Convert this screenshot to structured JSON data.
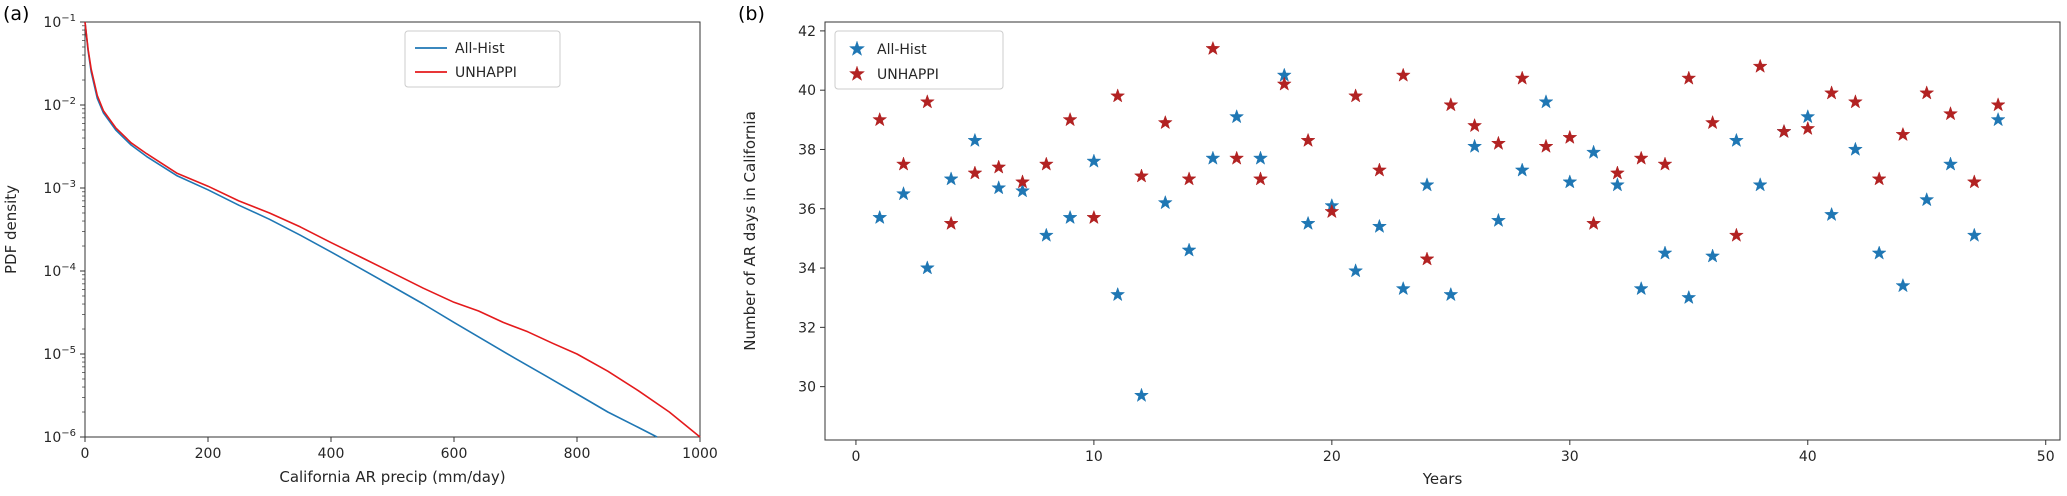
{
  "chart_data": [
    {
      "type": "line",
      "panel_label": "(a)",
      "title": "",
      "xlabel": "California AR precip (mm/day)",
      "ylabel": "PDF density",
      "yscale": "log",
      "xlim": [
        0,
        1000
      ],
      "ylim": [
        1e-06,
        0.1
      ],
      "x_ticks": [
        0,
        200,
        400,
        600,
        800,
        1000
      ],
      "y_tick_exponents": [
        -1,
        -2,
        -3,
        -4,
        -5,
        -6
      ],
      "grid": false,
      "legend_position": "top-right",
      "series": [
        {
          "name": "All-Hist",
          "color": "#1f77b4",
          "x": [
            0,
            5,
            10,
            20,
            30,
            50,
            75,
            100,
            150,
            200,
            250,
            300,
            350,
            400,
            450,
            500,
            550,
            600,
            650,
            700,
            750,
            800,
            850,
            900,
            930
          ],
          "y": [
            0.1,
            0.045,
            0.025,
            0.012,
            0.008,
            0.005,
            0.0033,
            0.0024,
            0.0014,
            0.00095,
            0.00062,
            0.00042,
            0.00027,
            0.00017,
            0.000105,
            6.5e-05,
            4e-05,
            2.4e-05,
            1.45e-05,
            8.8e-06,
            5.4e-06,
            3.3e-06,
            2e-06,
            1.3e-06,
            1e-06
          ]
        },
        {
          "name": "UNHAPPI",
          "color": "#e41a1c",
          "x": [
            0,
            5,
            10,
            20,
            30,
            50,
            75,
            100,
            150,
            200,
            250,
            300,
            350,
            400,
            450,
            500,
            550,
            600,
            640,
            680,
            720,
            760,
            800,
            850,
            900,
            950,
            1000
          ],
          "y": [
            0.1,
            0.047,
            0.027,
            0.013,
            0.0085,
            0.0053,
            0.0035,
            0.0026,
            0.0015,
            0.00105,
            0.0007,
            0.0005,
            0.00034,
            0.00022,
            0.000145,
            9.5e-05,
            6.2e-05,
            4.2e-05,
            3.3e-05,
            2.4e-05,
            1.85e-05,
            1.35e-05,
            1e-05,
            6.2e-06,
            3.6e-06,
            2e-06,
            1e-06
          ]
        }
      ]
    },
    {
      "type": "scatter",
      "panel_label": "(b)",
      "title": "",
      "xlabel": "Years",
      "ylabel": "Number of AR days in California",
      "yscale": "linear",
      "xlim": [
        -1.3,
        50.6
      ],
      "ylim": [
        28.2,
        42.3
      ],
      "x_ticks": [
        0,
        10,
        20,
        30,
        40,
        50
      ],
      "y_ticks": [
        30,
        32,
        34,
        36,
        38,
        40,
        42
      ],
      "grid": false,
      "marker": "star",
      "legend_position": "top-left",
      "x": [
        1,
        2,
        3,
        4,
        5,
        6,
        7,
        8,
        9,
        10,
        11,
        12,
        13,
        14,
        15,
        16,
        17,
        18,
        19,
        20,
        21,
        22,
        23,
        24,
        25,
        26,
        27,
        28,
        29,
        30,
        31,
        32,
        33,
        34,
        35,
        36,
        37,
        38,
        39,
        40,
        41,
        42,
        43,
        44,
        45,
        46,
        47,
        48
      ],
      "series": [
        {
          "name": "All-Hist",
          "color": "#1f77b4",
          "y": [
            35.7,
            36.5,
            34.0,
            37.0,
            38.3,
            36.7,
            36.6,
            35.1,
            35.7,
            37.6,
            33.1,
            29.7,
            36.2,
            34.6,
            37.7,
            39.1,
            37.7,
            40.5,
            35.5,
            36.1,
            33.9,
            35.4,
            33.3,
            36.8,
            33.1,
            38.1,
            35.6,
            37.3,
            39.6,
            36.9,
            37.9,
            36.8,
            33.3,
            34.5,
            33.0,
            34.4,
            38.3,
            36.8,
            38.6,
            39.1,
            35.8,
            38.0,
            34.5,
            33.4,
            36.3,
            37.5,
            35.1,
            39.0
          ]
        },
        {
          "name": "UNHAPPI",
          "color": "#b22222",
          "y": [
            39.0,
            37.5,
            39.6,
            35.5,
            37.2,
            37.4,
            36.9,
            37.5,
            39.0,
            35.7,
            39.8,
            37.1,
            38.9,
            37.0,
            41.4,
            37.7,
            37.0,
            40.2,
            38.3,
            35.9,
            39.8,
            37.3,
            40.5,
            34.3,
            39.5,
            38.8,
            38.2,
            40.4,
            38.1,
            38.4,
            35.5,
            37.2,
            37.7,
            37.5,
            40.4,
            38.9,
            35.1,
            40.8,
            38.6,
            38.7,
            39.9,
            39.6,
            37.0,
            38.5,
            39.9,
            39.2,
            36.9,
            39.5
          ]
        }
      ]
    }
  ]
}
